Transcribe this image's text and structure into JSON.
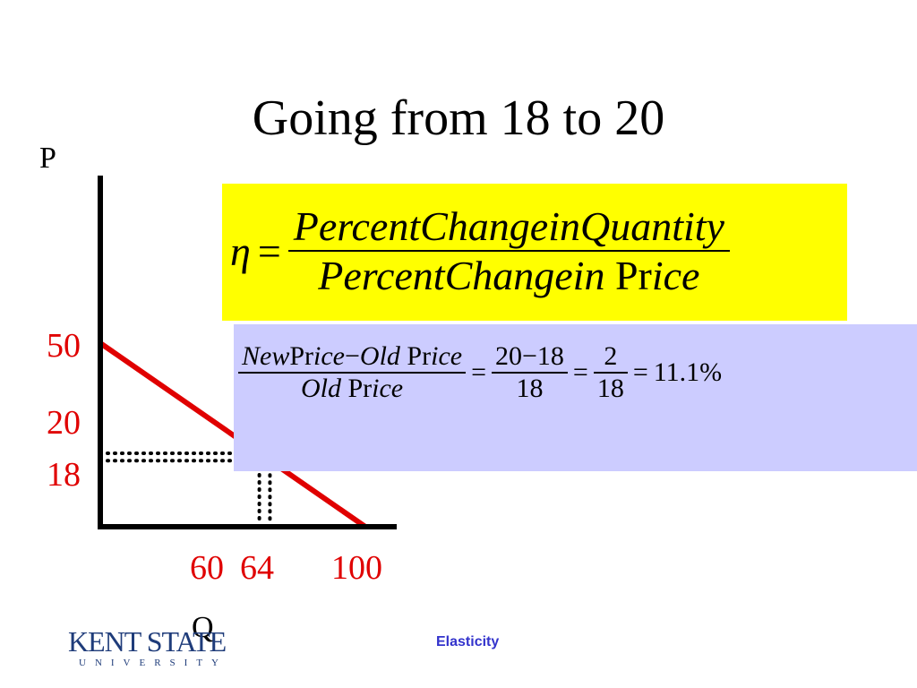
{
  "slide": {
    "title": "Going from 18 to 20",
    "footer": "Elasticity"
  },
  "logo": {
    "name": "KENT STATE",
    "subtitle": "UNIVERSITY"
  },
  "graph": {
    "y_axis_label": "P",
    "x_axis_label": "Q",
    "y_ticks": [
      "50",
      "20",
      "18"
    ],
    "x_ticks": [
      "60",
      "64",
      "100"
    ],
    "demand_line": {
      "from": {
        "q": 0,
        "p": 50
      },
      "to": {
        "q": 100,
        "p": 0
      }
    },
    "points": [
      {
        "q": 60,
        "p": 20
      },
      {
        "q": 64,
        "p": 18
      }
    ],
    "colors": {
      "axis": "#000000",
      "line": "#e00000",
      "ticks": "#e00000"
    }
  },
  "formula": {
    "eta": "η",
    "equals": "=",
    "numerator": "PercentChangeinQuantity",
    "denominator_italic": "PercentChangein",
    "denominator_roman": "Pr",
    "denominator_tail": "ice",
    "highlight_color": "#ffff00"
  },
  "calculation": {
    "num_new": "New",
    "num_pr1": "Pr",
    "num_ice1": "ice",
    "num_minus": "−",
    "num_old": "Old",
    "num_pr2": "Pr",
    "num_ice2": "ice",
    "den_old": "Old",
    "den_pr": "Pr",
    "den_ice": "ice",
    "equals": "=",
    "frac2_num": "20−18",
    "frac2_den": "18",
    "frac3_num": "2",
    "frac3_den": "18",
    "result": "11.1%",
    "box_color": "#ccccff"
  }
}
